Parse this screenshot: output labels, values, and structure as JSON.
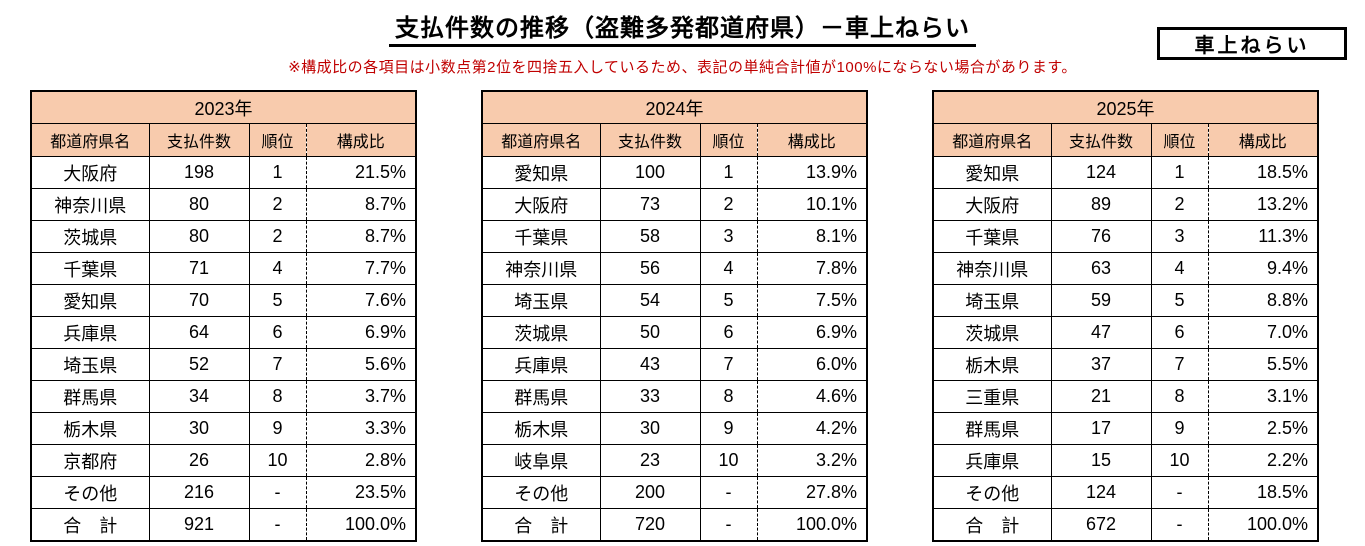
{
  "page": {
    "title": "支払件数の推移（盗難多発都道府県）－車上ねらい",
    "note": "※構成比の各項目は小数点第2位を四捨五入しているため、表記の単純合計値が100%にならない場合があります。",
    "corner_label": "車上ねらい"
  },
  "colors": {
    "header_bg": "#F8CBAD",
    "note_color": "#C00000",
    "border": "#000000"
  },
  "columns": [
    "都道府県名",
    "支払件数",
    "順位",
    "構成比"
  ],
  "tables": [
    {
      "year": "2023年",
      "rows": [
        [
          "大阪府",
          "198",
          "1",
          "21.5%"
        ],
        [
          "神奈川県",
          "80",
          "2",
          "8.7%"
        ],
        [
          "茨城県",
          "80",
          "2",
          "8.7%"
        ],
        [
          "千葉県",
          "71",
          "4",
          "7.7%"
        ],
        [
          "愛知県",
          "70",
          "5",
          "7.6%"
        ],
        [
          "兵庫県",
          "64",
          "6",
          "6.9%"
        ],
        [
          "埼玉県",
          "52",
          "7",
          "5.6%"
        ],
        [
          "群馬県",
          "34",
          "8",
          "3.7%"
        ],
        [
          "栃木県",
          "30",
          "9",
          "3.3%"
        ],
        [
          "京都府",
          "26",
          "10",
          "2.8%"
        ],
        [
          "その他",
          "216",
          "-",
          "23.5%"
        ],
        [
          "合　計",
          "921",
          "-",
          "100.0%"
        ]
      ]
    },
    {
      "year": "2024年",
      "rows": [
        [
          "愛知県",
          "100",
          "1",
          "13.9%"
        ],
        [
          "大阪府",
          "73",
          "2",
          "10.1%"
        ],
        [
          "千葉県",
          "58",
          "3",
          "8.1%"
        ],
        [
          "神奈川県",
          "56",
          "4",
          "7.8%"
        ],
        [
          "埼玉県",
          "54",
          "5",
          "7.5%"
        ],
        [
          "茨城県",
          "50",
          "6",
          "6.9%"
        ],
        [
          "兵庫県",
          "43",
          "7",
          "6.0%"
        ],
        [
          "群馬県",
          "33",
          "8",
          "4.6%"
        ],
        [
          "栃木県",
          "30",
          "9",
          "4.2%"
        ],
        [
          "岐阜県",
          "23",
          "10",
          "3.2%"
        ],
        [
          "その他",
          "200",
          "-",
          "27.8%"
        ],
        [
          "合　計",
          "720",
          "-",
          "100.0%"
        ]
      ]
    },
    {
      "year": "2025年",
      "rows": [
        [
          "愛知県",
          "124",
          "1",
          "18.5%"
        ],
        [
          "大阪府",
          "89",
          "2",
          "13.2%"
        ],
        [
          "千葉県",
          "76",
          "3",
          "11.3%"
        ],
        [
          "神奈川県",
          "63",
          "4",
          "9.4%"
        ],
        [
          "埼玉県",
          "59",
          "5",
          "8.8%"
        ],
        [
          "茨城県",
          "47",
          "6",
          "7.0%"
        ],
        [
          "栃木県",
          "37",
          "7",
          "5.5%"
        ],
        [
          "三重県",
          "21",
          "8",
          "3.1%"
        ],
        [
          "群馬県",
          "17",
          "9",
          "2.5%"
        ],
        [
          "兵庫県",
          "15",
          "10",
          "2.2%"
        ],
        [
          "その他",
          "124",
          "-",
          "18.5%"
        ],
        [
          "合　計",
          "672",
          "-",
          "100.0%"
        ]
      ]
    }
  ]
}
